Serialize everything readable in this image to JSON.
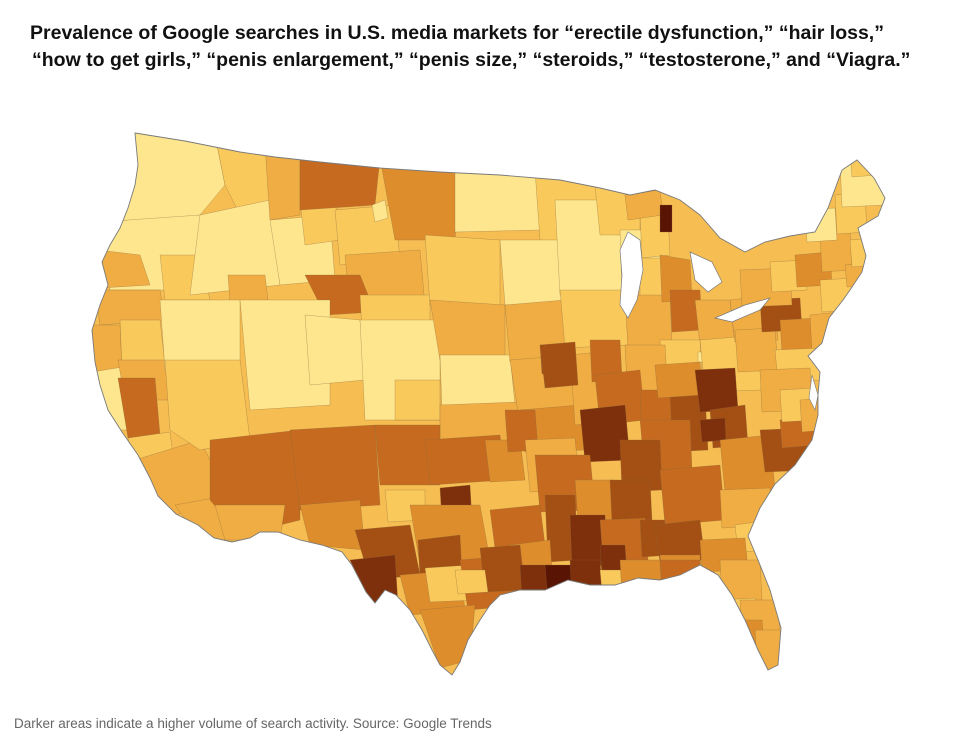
{
  "title": {
    "line1": "Prevalence of Google searches in U.S. media markets for “erectile dysfunction,” “hair loss,”",
    "line2": "“how to get girls,” “penis enlargement,” “penis size,” “steroids,” “testosterone,” and “Viagra.”"
  },
  "caption": "Darker areas indicate a higher volume of search activity. Source: Google Trends",
  "map": {
    "type": "choropleth",
    "area": "United States (contiguous) — Nielsen media markets",
    "scale": "light yellow (lower search volume) to dark brown (higher search volume)",
    "colors": {
      "level1": "#fde68e",
      "level2": "#f9c95c",
      "level3": "#f0ad43",
      "level4": "#de8d2c",
      "level5": "#c56a1e",
      "level6": "#a44f14",
      "level7": "#7e2f0b",
      "level8": "#5a1404",
      "ocean": "#ffffff",
      "lakes": "#ffffff"
    }
  }
}
